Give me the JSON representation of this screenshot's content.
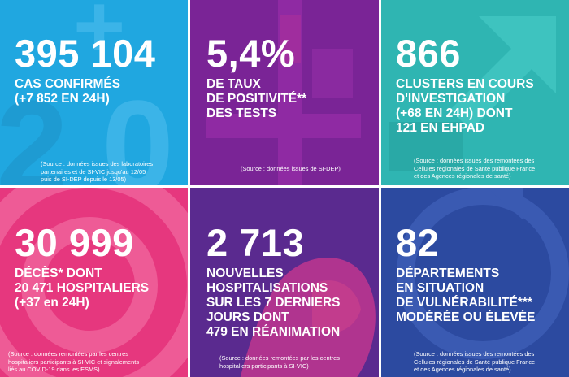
{
  "tiles": [
    {
      "value": "395 104",
      "lines": [
        "CAS CONFIRMÉS",
        "(+7 852 EN 24H)"
      ],
      "source": [
        "(Source : données issues des laboratoires",
        "partenaires et de SI-VIC jusqu'au 12/05",
        "puis de SI-DEP depuis le 13/05)"
      ],
      "color": "#20a7e0"
    },
    {
      "value": "5,4%",
      "lines": [
        "DE TAUX",
        "DE POSITIVITÉ**",
        "DES TESTS"
      ],
      "source": [
        "(Source : données issues de SI-DEP)"
      ],
      "color": "#7a2496"
    },
    {
      "value": "866",
      "lines": [
        "CLUSTERS EN COURS",
        "D'INVESTIGATION",
        "(+68 EN 24H) DONT",
        "121 EN EHPAD"
      ],
      "source": [
        "(Source : données issues des remontées des",
        "Cellules régionales de Santé publique France",
        "et des Agences régionales de santé)"
      ],
      "color": "#2fb5b2"
    },
    {
      "value": "30 999",
      "lines": [
        "DÉCÈS* DONT",
        "20 471 HOSPITALIERS",
        "(+37 en 24H)"
      ],
      "source": [
        "(Source : données remontées par les centres",
        "hospitaliers participants à SI-VIC et signalements",
        "liés au COVID-19 dans les ESMS)"
      ],
      "color": "#e6377e"
    },
    {
      "value": "2 713",
      "lines": [
        "NOUVELLES",
        "HOSPITALISATIONS",
        "SUR LES 7 DERNIERS",
        "JOURS DONT",
        "479 EN RÉANIMATION"
      ],
      "source": [
        "(Source : données remontées par les centres",
        "hospitaliers participants à SI-VIC)"
      ],
      "color": "#5a2a8f"
    },
    {
      "value": "82",
      "lines": [
        "DÉPARTEMENTS",
        "EN SITUATION",
        "DE VULNÉRABILITÉ***",
        "MODÉRÉE OU ÉLEVÉE"
      ],
      "source": [
        "(Source : données issues des remontées des",
        "Cellules régionales de Santé publique France",
        "et des Agences régionales de santé)"
      ],
      "color": "#2c4aa0"
    }
  ]
}
